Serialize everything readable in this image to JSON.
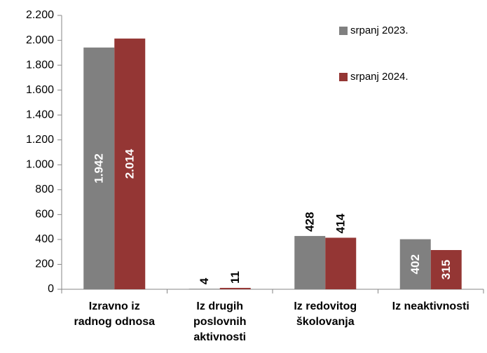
{
  "chart_data": {
    "type": "bar",
    "categories": [
      "Izravno iz\nradnog odnosa",
      "Iz drugih\nposlovnih\naktivnosti",
      "Iz redovitog\nškolovanja",
      "Iz neaktivnosti"
    ],
    "series": [
      {
        "name": "srpanj 2023.",
        "color": "#808080",
        "values": [
          1942,
          4,
          428,
          402
        ],
        "value_labels": [
          "1.942",
          "4",
          "428",
          "402"
        ]
      },
      {
        "name": "srpanj 2024.",
        "color": "#943634",
        "values": [
          2014,
          11,
          414,
          315
        ],
        "value_labels": [
          "2.014",
          "11",
          "414",
          "315"
        ]
      }
    ],
    "ylim": [
      0,
      2200
    ],
    "yticks": [
      0,
      200,
      400,
      600,
      800,
      {
        "value": 1000,
        "label": "1.000"
      },
      {
        "value": 1200,
        "label": "1.200"
      },
      {
        "value": 1400,
        "label": "1.400"
      },
      {
        "value": 1600,
        "label": "1.600"
      },
      {
        "value": 1800,
        "label": "1.800"
      },
      {
        "value": 2000,
        "label": "2.000"
      },
      {
        "value": 2200,
        "label": "2.200"
      }
    ],
    "grid": false,
    "legend": "top-right"
  }
}
